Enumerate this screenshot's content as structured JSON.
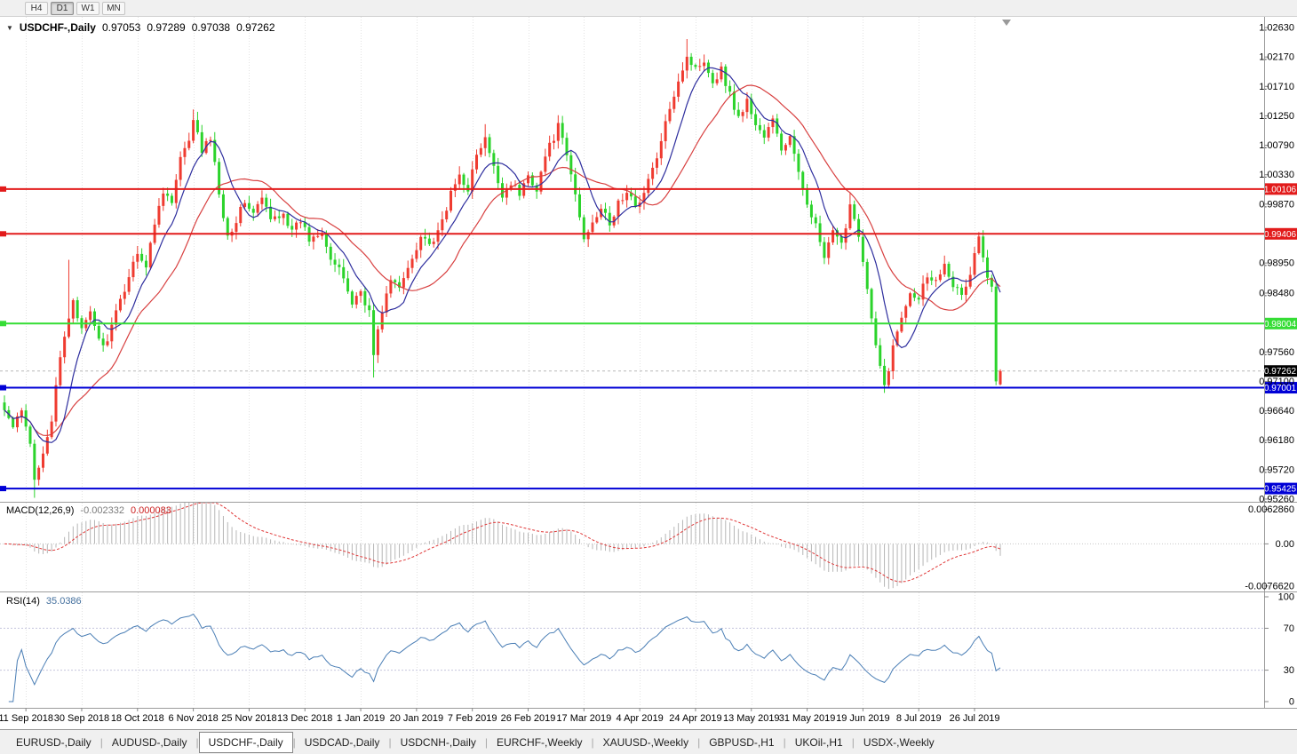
{
  "toolbar": {
    "timeframes": [
      {
        "label": "H4",
        "active": false
      },
      {
        "label": "D1",
        "active": true
      },
      {
        "label": "W1",
        "active": false
      },
      {
        "label": "MN",
        "active": false
      }
    ]
  },
  "header": {
    "collapse_icon": "▼",
    "symbol": "USDCHF-,Daily",
    "open": "0.97053",
    "high": "0.97289",
    "low": "0.97038",
    "close": "0.97262"
  },
  "main_chart": {
    "price_min": 0.95218,
    "price_max": 1.02797,
    "y_ticks": [
      "1.02630",
      "1.02170",
      "1.01710",
      "1.01250",
      "1.00790",
      "1.00330",
      "0.99870",
      "0.98950",
      "0.98480",
      "0.97560",
      "0.97100",
      "0.96640",
      "0.96180",
      "0.95720",
      "0.95260"
    ],
    "hlines": [
      {
        "value": 1.00106,
        "label": "1.00106",
        "color": "#e21b1b"
      },
      {
        "value": 0.99406,
        "label": "0.99406",
        "color": "#e21b1b"
      },
      {
        "value": 0.98004,
        "label": "0.98004",
        "color": "#35dd35"
      },
      {
        "value": 0.97001,
        "label": "0.97001",
        "color": "#0000d6"
      },
      {
        "value": 0.95425,
        "label": "0.95425",
        "color": "#0000d6"
      }
    ],
    "current_price": {
      "value": 0.97262,
      "label": "0.97262",
      "badge_bg": "#000000",
      "line_color": "#b8b8b8"
    }
  },
  "macd_panel": {
    "title": "MACD(12,26,9)",
    "main_value": "-0.002332",
    "signal_value": "0.000083",
    "axis": [
      "0.0062860",
      "0.00",
      "-0.0076620"
    ],
    "range_max": 0.0075,
    "range_min": -0.0085
  },
  "rsi_panel": {
    "title": "RSI(14)",
    "value": "35.0386",
    "axis": [
      "100",
      "70",
      "30",
      "0"
    ],
    "levels": [
      70,
      30
    ]
  },
  "time_axis": {
    "dates": [
      "11 Sep 2018",
      "30 Sep 2018",
      "18 Oct 2018",
      "6 Nov 2018",
      "25 Nov 2018",
      "13 Dec 2018",
      "1 Jan 2019",
      "20 Jan 2019",
      "7 Feb 2019",
      "26 Feb 2019",
      "17 Mar 2019",
      "4 Apr 2019",
      "24 Apr 2019",
      "13 May 2019",
      "31 May 2019",
      "19 Jun 2019",
      "8 Jul 2019",
      "26 Jul 2019"
    ],
    "first_tick_index": 5,
    "tick_step": 13
  },
  "tabs": [
    {
      "label": "EURUSD-,Daily",
      "active": false
    },
    {
      "label": "AUDUSD-,Daily",
      "active": false
    },
    {
      "label": "USDCHF-,Daily",
      "active": true
    },
    {
      "label": "USDCAD-,Daily",
      "active": false
    },
    {
      "label": "USDCNH-,Daily",
      "active": false
    },
    {
      "label": "EURCHF-,Weekly",
      "active": false
    },
    {
      "label": "XAUUSD-,Weekly",
      "active": false
    },
    {
      "label": "GBPUSD-,H1",
      "active": false
    },
    {
      "label": "UKOil-,H1",
      "active": false
    },
    {
      "label": "USDX-,Weekly",
      "active": false
    }
  ],
  "chart_data": {
    "type": "candlestick",
    "symbol": "USDCHF",
    "timeframe": "Daily",
    "n_candles": 233,
    "first_x": 5,
    "dx": 4.832,
    "up_color": "#ef3b30",
    "down_color": "#2bd32b",
    "ma_fast": {
      "period": 8,
      "color": "#2e2e9e"
    },
    "ma_slow": {
      "period": 20,
      "color": "#d84040"
    },
    "macd_colors": {
      "histogram": "#b6b6b6",
      "signal": "#e03838"
    },
    "rsi_color": "#4a7eb5",
    "candle_keypoints": [
      [
        0,
        0.9665
      ],
      [
        2,
        0.9638
      ],
      [
        4,
        0.9662
      ],
      [
        6,
        0.961
      ],
      [
        7,
        0.9556
      ],
      [
        9,
        0.9603
      ],
      [
        11,
        0.965
      ],
      [
        13,
        0.9745
      ],
      [
        15,
        0.981
      ],
      [
        16,
        0.984
      ],
      [
        18,
        0.9788
      ],
      [
        20,
        0.9815
      ],
      [
        23,
        0.9762
      ],
      [
        25,
        0.9795
      ],
      [
        28,
        0.9855
      ],
      [
        31,
        0.9915
      ],
      [
        33,
        0.9888
      ],
      [
        35,
        0.9958
      ],
      [
        37,
        1.001
      ],
      [
        39,
        0.9988
      ],
      [
        41,
        1.0058
      ],
      [
        43,
        1.0082
      ],
      [
        44,
        1.0122
      ],
      [
        46,
        1.0068
      ],
      [
        48,
        1.0092
      ],
      [
        50,
        1.0005
      ],
      [
        52,
        0.9938
      ],
      [
        54,
        0.9962
      ],
      [
        56,
        0.9992
      ],
      [
        58,
        0.9972
      ],
      [
        60,
        0.9996
      ],
      [
        62,
        0.9962
      ],
      [
        65,
        0.9975
      ],
      [
        67,
        0.9942
      ],
      [
        69,
        0.9962
      ],
      [
        71,
        0.9932
      ],
      [
        74,
        0.9948
      ],
      [
        76,
        0.9902
      ],
      [
        79,
        0.9872
      ],
      [
        81,
        0.9832
      ],
      [
        83,
        0.9852
      ],
      [
        85,
        0.9818
      ],
      [
        86,
        0.9752
      ],
      [
        88,
        0.9822
      ],
      [
        90,
        0.9868
      ],
      [
        92,
        0.9855
      ],
      [
        95,
        0.9905
      ],
      [
        97,
        0.9938
      ],
      [
        100,
        0.9922
      ],
      [
        102,
        0.9962
      ],
      [
        104,
        1.0002
      ],
      [
        106,
        1.0032
      ],
      [
        108,
        1.0012
      ],
      [
        110,
        1.0062
      ],
      [
        112,
        1.0088
      ],
      [
        114,
        1.0042
      ],
      [
        116,
        1.0002
      ],
      [
        118,
        1.0022
      ],
      [
        120,
        1.0002
      ],
      [
        122,
        1.0032
      ],
      [
        124,
        1.0012
      ],
      [
        126,
        1.0062
      ],
      [
        128,
        1.0092
      ],
      [
        129,
        1.0108
      ],
      [
        131,
        1.0062
      ],
      [
        133,
        1.0002
      ],
      [
        135,
        0.9932
      ],
      [
        137,
        0.9962
      ],
      [
        139,
        0.9982
      ],
      [
        141,
        0.9952
      ],
      [
        143,
        0.999
      ],
      [
        145,
        1.0002
      ],
      [
        147,
        0.9986
      ],
      [
        149,
        1.0004
      ],
      [
        151,
        1.0042
      ],
      [
        153,
        1.0082
      ],
      [
        155,
        1.014
      ],
      [
        157,
        1.0182
      ],
      [
        159,
        1.0218
      ],
      [
        161,
        1.0198
      ],
      [
        163,
        1.0214
      ],
      [
        165,
        1.0178
      ],
      [
        167,
        1.0198
      ],
      [
        169,
        1.0158
      ],
      [
        171,
        1.0122
      ],
      [
        173,
        1.0148
      ],
      [
        175,
        1.0112
      ],
      [
        177,
        1.0092
      ],
      [
        179,
        1.0118
      ],
      [
        181,
        1.0072
      ],
      [
        183,
        1.0092
      ],
      [
        185,
        1.0032
      ],
      [
        187,
        0.9992
      ],
      [
        189,
        0.9952
      ],
      [
        191,
        0.9902
      ],
      [
        193,
        0.9942
      ],
      [
        195,
        0.9922
      ],
      [
        197,
        0.9988
      ],
      [
        199,
        0.9942
      ],
      [
        201,
        0.9852
      ],
      [
        203,
        0.9762
      ],
      [
        205,
        0.9702
      ],
      [
        207,
        0.9762
      ],
      [
        209,
        0.9812
      ],
      [
        211,
        0.9852
      ],
      [
        213,
        0.9842
      ],
      [
        215,
        0.9878
      ],
      [
        217,
        0.9866
      ],
      [
        219,
        0.9898
      ],
      [
        221,
        0.9862
      ],
      [
        223,
        0.9842
      ],
      [
        225,
        0.9878
      ],
      [
        227,
        0.9938
      ],
      [
        228,
        0.9902
      ],
      [
        229,
        0.9872
      ],
      [
        230,
        0.9858
      ],
      [
        231,
        0.971
      ],
      [
        232,
        0.97262
      ]
    ],
    "overrides": {
      "7": {
        "low": 0.9528
      },
      "15": {
        "high": 0.99
      },
      "44": {
        "high": 1.0135
      },
      "86": {
        "low": 0.9716
      },
      "112": {
        "high": 1.0112
      },
      "129": {
        "high": 1.0126
      },
      "159": {
        "high": 1.0245
      },
      "197": {
        "high": 1.0005
      },
      "205": {
        "low": 0.9692
      },
      "231": {
        "low": 0.9704
      },
      "232": {
        "open": 0.97053,
        "high": 0.97289,
        "low": 0.97038,
        "close": 0.97262
      }
    }
  }
}
